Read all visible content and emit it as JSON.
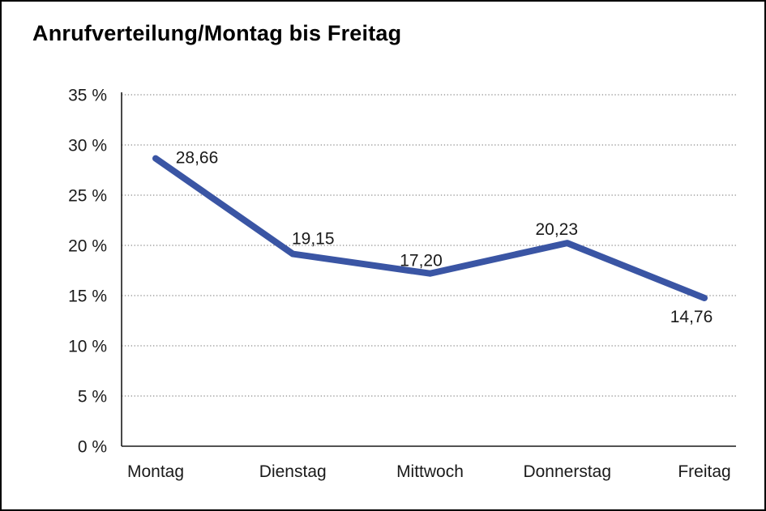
{
  "title": "Anrufverteilung/Montag bis Freitag",
  "chart_data": {
    "type": "line",
    "title": "Anrufverteilung/Montag bis Freitag",
    "categories": [
      "Montag",
      "Dienstag",
      "Mittwoch",
      "Donnerstag",
      "Freitag"
    ],
    "values": [
      28.66,
      19.15,
      17.2,
      20.23,
      14.76
    ],
    "value_labels": [
      "28,66",
      "19,15",
      "17,20",
      "20,23",
      "14,76"
    ],
    "xlabel": "",
    "ylabel": "",
    "ylim": [
      0,
      35
    ],
    "ytick_step": 5,
    "ytick_labels": [
      "0 %",
      "5 %",
      "10 %",
      "15 %",
      "20 %",
      "25 %",
      "30 %",
      "35 %"
    ],
    "grid": "horizontal-dotted",
    "legend": "none",
    "line_color": "#3A55A4",
    "axis_color": "#1a1a1a",
    "grid_color": "#6e6e6e",
    "label_color": "#1a1a1a"
  }
}
